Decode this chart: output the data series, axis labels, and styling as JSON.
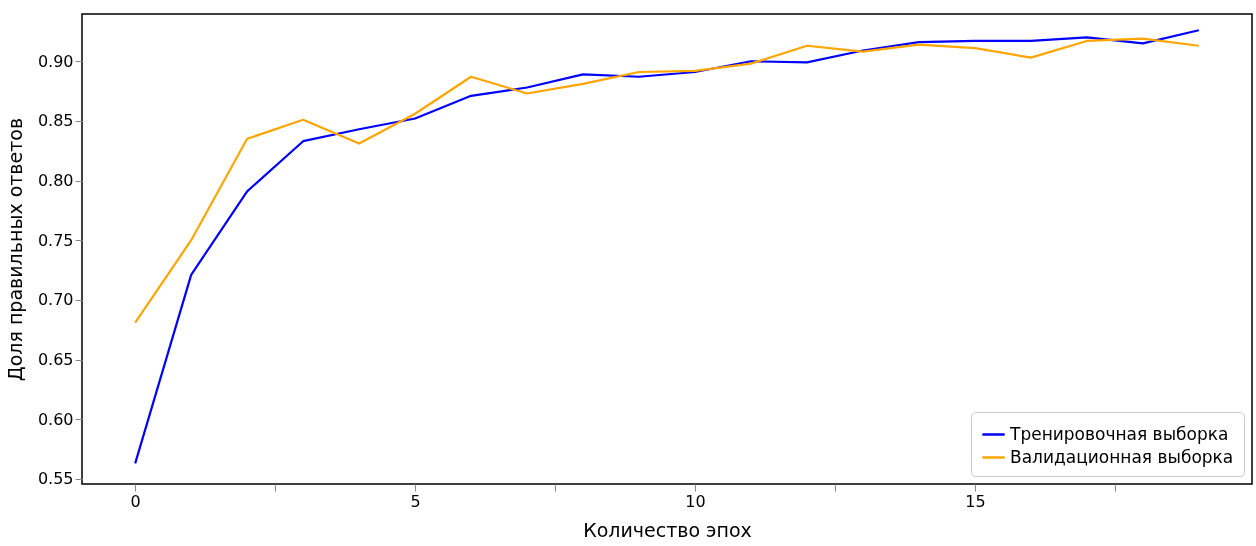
{
  "chart_data": {
    "type": "line",
    "xlabel": "Количество эпох",
    "ylabel": "Доля правильных ответов",
    "x": [
      0,
      1,
      2,
      3,
      4,
      5,
      6,
      7,
      8,
      9,
      10,
      11,
      12,
      13,
      14,
      15,
      16,
      17,
      18,
      19
    ],
    "series": [
      {
        "name": "Тренировочная выборка",
        "color": "#0000ff",
        "values": [
          0.563,
          0.721,
          0.791,
          0.833,
          0.843,
          0.852,
          0.871,
          0.878,
          0.889,
          0.887,
          0.891,
          0.9,
          0.899,
          0.909,
          0.916,
          0.917,
          0.917,
          0.92,
          0.915,
          0.926
        ]
      },
      {
        "name": "Валидационная выборка",
        "color": "#ffa500",
        "values": [
          0.681,
          0.75,
          0.835,
          0.851,
          0.831,
          0.856,
          0.887,
          0.873,
          0.881,
          0.891,
          0.892,
          0.898,
          0.913,
          0.908,
          0.914,
          0.911,
          0.903,
          0.917,
          0.919,
          0.913
        ]
      }
    ],
    "xlim": [
      -0.95,
      19.95
    ],
    "xticks": [
      0,
      {
        "value": 2.5,
        "label": null
      },
      5,
      {
        "value": 7.5,
        "label": null
      },
      10,
      {
        "value": 12.5,
        "label": null
      },
      15,
      {
        "value": 17.5,
        "label": null
      }
    ],
    "ylim": [
      0.5457,
      0.9396
    ],
    "yticks": [
      0.55,
      {
        "value": 0.6,
        "label": "0.60"
      },
      0.65,
      {
        "value": 0.7,
        "label": "0.70"
      },
      0.75,
      {
        "value": 0.8,
        "label": "0.80"
      },
      0.85,
      {
        "value": 0.9,
        "label": "0.90"
      }
    ],
    "grid": false,
    "legend": "bottom right",
    "marker": "none",
    "line_style": "solid"
  }
}
